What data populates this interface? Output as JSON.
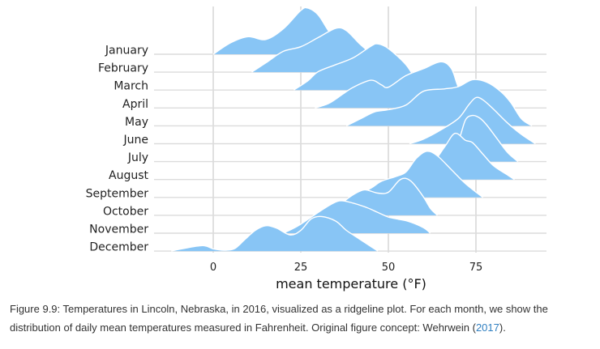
{
  "caption": {
    "text_before": "Figure 9.9: Temperatures in Lincoln, Nebraska, in 2016, visualized as a ridgeline plot. For each month, we show the distribution of daily mean temperatures measured in Fahrenheit. Original figure concept: Wehrwein (",
    "link_text": "2017",
    "text_after": ")."
  },
  "colors": {
    "fill": "#88c5f5",
    "outline": "#ffffff",
    "grid": "#d9d9d9",
    "baseline": "#dcdcdc"
  },
  "chart_data": {
    "type": "ridgeline",
    "title": "",
    "xlabel": "mean temperature (°F)",
    "ylabel": "",
    "xlim": [
      -12,
      95
    ],
    "xticks": [
      0,
      25,
      50,
      75
    ],
    "grid_x": true,
    "series": [
      {
        "name": "January",
        "density": [
          [
            0,
            0
          ],
          [
            5,
            0.25
          ],
          [
            10,
            0.38
          ],
          [
            15,
            0.32
          ],
          [
            20,
            0.55
          ],
          [
            25,
            0.95
          ],
          [
            27,
            1.0
          ],
          [
            30,
            0.85
          ],
          [
            33,
            0.5
          ],
          [
            36,
            0.25
          ],
          [
            40,
            0.08
          ],
          [
            42,
            0
          ]
        ]
      },
      {
        "name": "February",
        "density": [
          [
            11,
            0
          ],
          [
            15,
            0.2
          ],
          [
            20,
            0.45
          ],
          [
            25,
            0.55
          ],
          [
            30,
            0.75
          ],
          [
            35,
            0.95
          ],
          [
            38,
            0.9
          ],
          [
            42,
            0.6
          ],
          [
            46,
            0.35
          ],
          [
            50,
            0.2
          ],
          [
            55,
            0.05
          ],
          [
            58,
            0
          ]
        ]
      },
      {
        "name": "March",
        "density": [
          [
            23,
            0
          ],
          [
            27,
            0.2
          ],
          [
            30,
            0.4
          ],
          [
            35,
            0.55
          ],
          [
            40,
            0.7
          ],
          [
            45,
            0.95
          ],
          [
            47,
            1.0
          ],
          [
            50,
            0.9
          ],
          [
            55,
            0.55
          ],
          [
            58,
            0.2
          ],
          [
            60,
            0
          ]
        ]
      },
      {
        "name": "April",
        "density": [
          [
            29,
            0
          ],
          [
            33,
            0.1
          ],
          [
            37,
            0.3
          ],
          [
            40,
            0.45
          ],
          [
            45,
            0.6
          ],
          [
            48,
            0.5
          ],
          [
            50,
            0.45
          ],
          [
            55,
            0.7
          ],
          [
            60,
            0.85
          ],
          [
            65,
            1.0
          ],
          [
            68,
            0.85
          ],
          [
            70,
            0.45
          ],
          [
            73,
            0.1
          ],
          [
            75,
            0
          ]
        ]
      },
      {
        "name": "May",
        "density": [
          [
            38,
            0
          ],
          [
            42,
            0.15
          ],
          [
            46,
            0.3
          ],
          [
            50,
            0.35
          ],
          [
            55,
            0.45
          ],
          [
            60,
            0.75
          ],
          [
            66,
            0.8
          ],
          [
            70,
            0.85
          ],
          [
            74,
            1.0
          ],
          [
            78,
            0.95
          ],
          [
            82,
            0.75
          ],
          [
            85,
            0.5
          ],
          [
            88,
            0.15
          ],
          [
            91,
            0
          ]
        ]
      },
      {
        "name": "June",
        "density": [
          [
            56,
            0
          ],
          [
            60,
            0.1
          ],
          [
            65,
            0.3
          ],
          [
            70,
            0.55
          ],
          [
            73,
            0.85
          ],
          [
            75,
            1.0
          ],
          [
            77,
            0.95
          ],
          [
            80,
            0.75
          ],
          [
            84,
            0.45
          ],
          [
            88,
            0.2
          ],
          [
            92,
            0
          ]
        ]
      },
      {
        "name": "July",
        "density": [
          [
            65,
            0
          ],
          [
            67,
            0.1
          ],
          [
            70,
            0.45
          ],
          [
            72,
            0.9
          ],
          [
            74,
            1.0
          ],
          [
            76,
            0.95
          ],
          [
            78,
            0.8
          ],
          [
            81,
            0.5
          ],
          [
            84,
            0.2
          ],
          [
            87,
            0
          ]
        ]
      },
      {
        "name": "August",
        "density": [
          [
            53,
            0
          ],
          [
            57,
            0.1
          ],
          [
            62,
            0.3
          ],
          [
            66,
            0.7
          ],
          [
            69,
            1.0
          ],
          [
            72,
            0.85
          ],
          [
            74,
            0.8
          ],
          [
            77,
            0.55
          ],
          [
            80,
            0.3
          ],
          [
            84,
            0.1
          ],
          [
            86,
            0
          ]
        ]
      },
      {
        "name": "September",
        "density": [
          [
            40,
            0
          ],
          [
            45,
            0.2
          ],
          [
            48,
            0.35
          ],
          [
            52,
            0.45
          ],
          [
            55,
            0.55
          ],
          [
            58,
            0.85
          ],
          [
            61,
            1.0
          ],
          [
            64,
            0.9
          ],
          [
            68,
            0.6
          ],
          [
            72,
            0.3
          ],
          [
            77,
            0
          ]
        ]
      },
      {
        "name": "October",
        "density": [
          [
            33,
            0
          ],
          [
            36,
            0.2
          ],
          [
            39,
            0.4
          ],
          [
            43,
            0.55
          ],
          [
            47,
            0.48
          ],
          [
            50,
            0.5
          ],
          [
            53,
            0.75
          ],
          [
            55,
            0.8
          ],
          [
            57,
            0.7
          ],
          [
            60,
            0.4
          ],
          [
            62,
            0.15
          ],
          [
            64,
            0
          ]
        ]
      },
      {
        "name": "November",
        "density": [
          [
            20,
            0
          ],
          [
            24,
            0.15
          ],
          [
            28,
            0.35
          ],
          [
            32,
            0.55
          ],
          [
            36,
            0.7
          ],
          [
            40,
            0.65
          ],
          [
            44,
            0.55
          ],
          [
            47,
            0.45
          ],
          [
            50,
            0.35
          ],
          [
            53,
            0.3
          ],
          [
            56,
            0.25
          ],
          [
            60,
            0.12
          ],
          [
            62,
            0
          ]
        ]
      },
      {
        "name": "December",
        "density": [
          [
            -12,
            0
          ],
          [
            -9,
            0.05
          ],
          [
            -3,
            0.12
          ],
          [
            0,
            0.05
          ],
          [
            3,
            0.02
          ],
          [
            6,
            0.05
          ],
          [
            9,
            0.25
          ],
          [
            12,
            0.45
          ],
          [
            15,
            0.55
          ],
          [
            18,
            0.5
          ],
          [
            22,
            0.35
          ],
          [
            25,
            0.45
          ],
          [
            28,
            0.7
          ],
          [
            31,
            0.75
          ],
          [
            35,
            0.65
          ],
          [
            38,
            0.45
          ],
          [
            42,
            0.25
          ],
          [
            45,
            0.1
          ],
          [
            47,
            0
          ]
        ]
      }
    ]
  }
}
